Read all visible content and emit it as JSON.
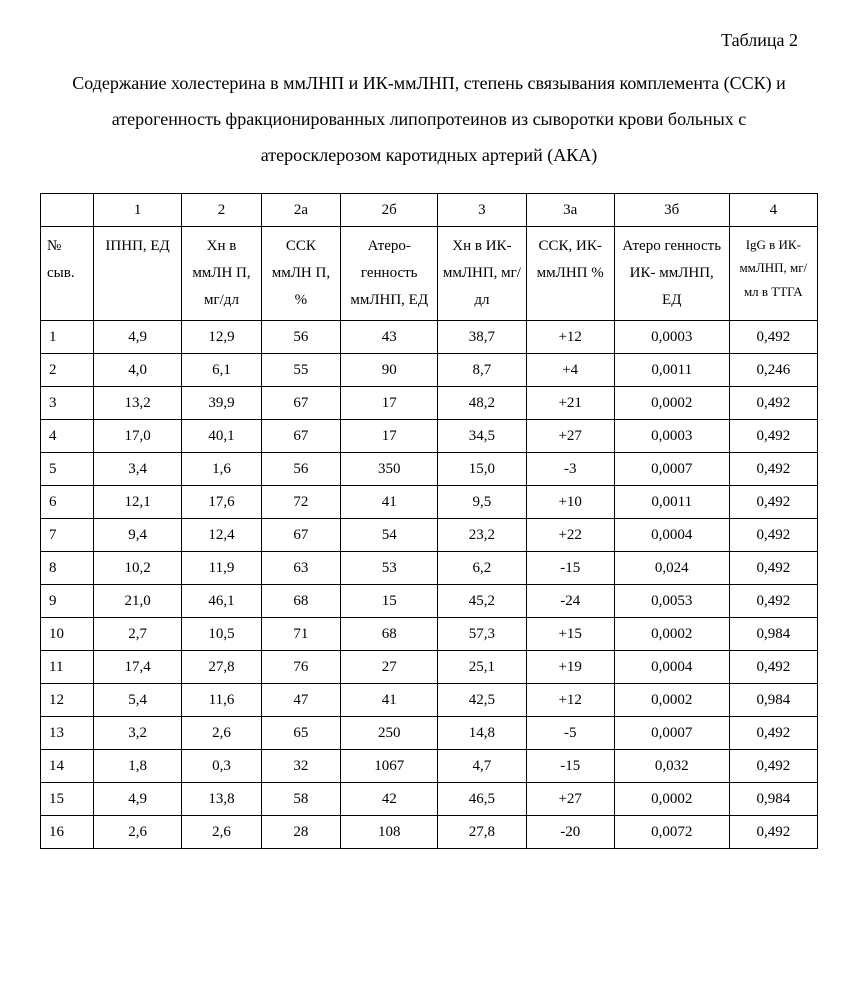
{
  "table_number": "Таблица 2",
  "caption": "Содержание холестерина в ммЛНП и ИК-ммЛНП, степень связывания комплемента (ССК) и атерогенность фракционированных липопротеинов из сыворотки крови больных с атеросклерозом каротидных артерий (АКА)",
  "header_top": {
    "c0": "",
    "c1": "1",
    "c2": "2",
    "c2a": "2а",
    "c2b": "2б",
    "c3": "3",
    "c3a": "3а",
    "c3b": "3б",
    "c4": "4"
  },
  "header_labels": {
    "c0": "№ сыв.",
    "c1": "ІПНП, ЕД",
    "c2": "Хн в ммЛН П, мг/дл",
    "c2a": "ССК ммЛН П, %",
    "c2b": "Атеро- генность ммЛНП, ЕД",
    "c3": "Хн в ИК- ммЛНП, мг/дл",
    "c3a": "ССК, ИК- ммЛНП %",
    "c3b": "Атеро генность ИК- ммЛНП, ЕД",
    "c4": "IgG в ИК- ммЛНП, мг/мл в ТТГА"
  },
  "rows": [
    {
      "n": "1",
      "c1": "4,9",
      "c2": "12,9",
      "c2a": "56",
      "c2b": "43",
      "c3": "38,7",
      "c3a": "+12",
      "c3b": "0,0003",
      "c4": "0,492"
    },
    {
      "n": "2",
      "c1": "4,0",
      "c2": "6,1",
      "c2a": "55",
      "c2b": "90",
      "c3": "8,7",
      "c3a": "+4",
      "c3b": "0,0011",
      "c4": "0,246"
    },
    {
      "n": "3",
      "c1": "13,2",
      "c2": "39,9",
      "c2a": "67",
      "c2b": "17",
      "c3": "48,2",
      "c3a": "+21",
      "c3b": "0,0002",
      "c4": "0,492"
    },
    {
      "n": "4",
      "c1": "17,0",
      "c2": "40,1",
      "c2a": "67",
      "c2b": "17",
      "c3": "34,5",
      "c3a": "+27",
      "c3b": "0,0003",
      "c4": "0,492"
    },
    {
      "n": "5",
      "c1": "3,4",
      "c2": "1,6",
      "c2a": "56",
      "c2b": "350",
      "c3": "15,0",
      "c3a": "-3",
      "c3b": "0,0007",
      "c4": "0,492"
    },
    {
      "n": "6",
      "c1": "12,1",
      "c2": "17,6",
      "c2a": "72",
      "c2b": "41",
      "c3": "9,5",
      "c3a": "+10",
      "c3b": "0,0011",
      "c4": "0,492"
    },
    {
      "n": "7",
      "c1": "9,4",
      "c2": "12,4",
      "c2a": "67",
      "c2b": "54",
      "c3": "23,2",
      "c3a": "+22",
      "c3b": "0,0004",
      "c4": "0,492"
    },
    {
      "n": "8",
      "c1": "10,2",
      "c2": "11,9",
      "c2a": "63",
      "c2b": "53",
      "c3": "6,2",
      "c3a": "-15",
      "c3b": "0,024",
      "c4": "0,492"
    },
    {
      "n": "9",
      "c1": "21,0",
      "c2": "46,1",
      "c2a": "68",
      "c2b": "15",
      "c3": "45,2",
      "c3a": "-24",
      "c3b": "0,0053",
      "c4": "0,492"
    },
    {
      "n": "10",
      "c1": "2,7",
      "c2": "10,5",
      "c2a": "71",
      "c2b": "68",
      "c3": "57,3",
      "c3a": "+15",
      "c3b": "0,0002",
      "c4": "0,984"
    },
    {
      "n": "11",
      "c1": "17,4",
      "c2": "27,8",
      "c2a": "76",
      "c2b": "27",
      "c3": "25,1",
      "c3a": "+19",
      "c3b": "0,0004",
      "c4": "0,492"
    },
    {
      "n": "12",
      "c1": "5,4",
      "c2": "11,6",
      "c2a": "47",
      "c2b": "41",
      "c3": "42,5",
      "c3a": "+12",
      "c3b": "0,0002",
      "c4": "0,984"
    },
    {
      "n": "13",
      "c1": "3,2",
      "c2": "2,6",
      "c2a": "65",
      "c2b": "250",
      "c3": "14,8",
      "c3a": "-5",
      "c3b": "0,0007",
      "c4": "0,492"
    },
    {
      "n": "14",
      "c1": "1,8",
      "c2": "0,3",
      "c2a": "32",
      "c2b": "1067",
      "c3": "4,7",
      "c3a": "-15",
      "c3b": "0,032",
      "c4": "0,492"
    },
    {
      "n": "15",
      "c1": "4,9",
      "c2": "13,8",
      "c2a": "58",
      "c2b": "42",
      "c3": "46,5",
      "c3a": "+27",
      "c3b": "0,0002",
      "c4": "0,984"
    },
    {
      "n": "16",
      "c1": "2,6",
      "c2": "2,6",
      "c2a": "28",
      "c2b": "108",
      "c3": "27,8",
      "c3a": "-20",
      "c3b": "0,0072",
      "c4": "0,492"
    }
  ]
}
